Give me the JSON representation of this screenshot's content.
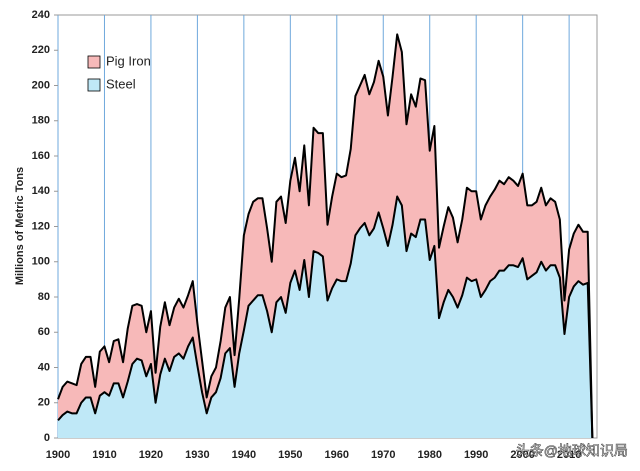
{
  "chart_data": {
    "type": "stacked_area",
    "y_label": "Millions of Metric Tons",
    "watermark": "头条@地球知识局",
    "x": [
      1900,
      1901,
      1902,
      1903,
      1904,
      1905,
      1906,
      1907,
      1908,
      1909,
      1910,
      1911,
      1912,
      1913,
      1914,
      1915,
      1916,
      1917,
      1918,
      1919,
      1920,
      1921,
      1922,
      1923,
      1924,
      1925,
      1926,
      1927,
      1928,
      1929,
      1930,
      1931,
      1932,
      1933,
      1934,
      1935,
      1936,
      1937,
      1938,
      1939,
      1940,
      1941,
      1942,
      1943,
      1944,
      1945,
      1946,
      1947,
      1948,
      1949,
      1950,
      1951,
      1952,
      1953,
      1954,
      1955,
      1956,
      1957,
      1958,
      1959,
      1960,
      1961,
      1962,
      1963,
      1964,
      1965,
      1966,
      1967,
      1968,
      1969,
      1970,
      1971,
      1972,
      1973,
      1974,
      1975,
      1976,
      1977,
      1978,
      1979,
      1980,
      1981,
      1982,
      1983,
      1984,
      1985,
      1986,
      1987,
      1988,
      1989,
      1990,
      1991,
      1992,
      1993,
      1994,
      1995,
      1996,
      1997,
      1998,
      1999,
      2000,
      2001,
      2002,
      2003,
      2004,
      2005,
      2006,
      2007,
      2008,
      2009,
      2010,
      2011,
      2012,
      2013,
      2014,
      2015
    ],
    "series": [
      {
        "name": "Pig Iron",
        "color": "#f7b9b9",
        "values": [
          12,
          16,
          17,
          17,
          16,
          22,
          23,
          23,
          15,
          25,
          26,
          19,
          24,
          25,
          20,
          30,
          33,
          31,
          31,
          25,
          30,
          17,
          27,
          32,
          26,
          28,
          31,
          29,
          29,
          32,
          24,
          18,
          9,
          12,
          14,
          21,
          26,
          29,
          18,
          31,
          54,
          52,
          56,
          55,
          55,
          47,
          40,
          57,
          57,
          51,
          58,
          64,
          56,
          65,
          52,
          70,
          68,
          70,
          43,
          52,
          60,
          59,
          60,
          65,
          79,
          81,
          84,
          80,
          83,
          86,
          86,
          74,
          84,
          92,
          87,
          72,
          79,
          74,
          80,
          79,
          62,
          68,
          40,
          43,
          47,
          45,
          37,
          43,
          51,
          51,
          50,
          44,
          48,
          48,
          50,
          51,
          49,
          50,
          48,
          46,
          48,
          42,
          40,
          40,
          42,
          37,
          38,
          36,
          33,
          19,
          27,
          30,
          32,
          30,
          29,
          0
        ]
      },
      {
        "name": "Steel",
        "color": "#bfe8f7",
        "values": [
          10,
          13,
          15,
          14,
          14,
          20,
          23,
          23,
          14,
          24,
          26,
          24,
          31,
          31,
          23,
          32,
          42,
          45,
          44,
          35,
          42,
          20,
          36,
          45,
          38,
          46,
          48,
          45,
          52,
          57,
          41,
          26,
          14,
          23,
          26,
          34,
          48,
          51,
          29,
          48,
          61,
          75,
          78,
          81,
          81,
          72,
          60,
          77,
          80,
          71,
          88,
          95,
          84,
          101,
          80,
          106,
          105,
          103,
          78,
          85,
          90,
          89,
          89,
          99,
          115,
          119,
          122,
          115,
          119,
          128,
          119,
          109,
          121,
          137,
          132,
          106,
          116,
          114,
          124,
          124,
          101,
          109,
          68,
          77,
          84,
          80,
          74,
          81,
          91,
          89,
          90,
          80,
          84,
          89,
          91,
          95,
          95,
          98,
          98,
          97,
          102,
          90,
          92,
          94,
          100,
          95,
          98,
          98,
          91,
          59,
          80,
          86,
          89,
          87,
          88,
          0
        ]
      }
    ],
    "xlim": [
      1900,
      2016
    ],
    "xticks": [
      1900,
      1910,
      1920,
      1930,
      1940,
      1950,
      1960,
      1970,
      1980,
      1990,
      2000,
      2010
    ],
    "ylim": [
      0,
      240
    ],
    "yticks": [
      0,
      20,
      40,
      60,
      80,
      100,
      120,
      140,
      160,
      180,
      200,
      220,
      240
    ],
    "grid": "x",
    "legend": "upper left"
  }
}
